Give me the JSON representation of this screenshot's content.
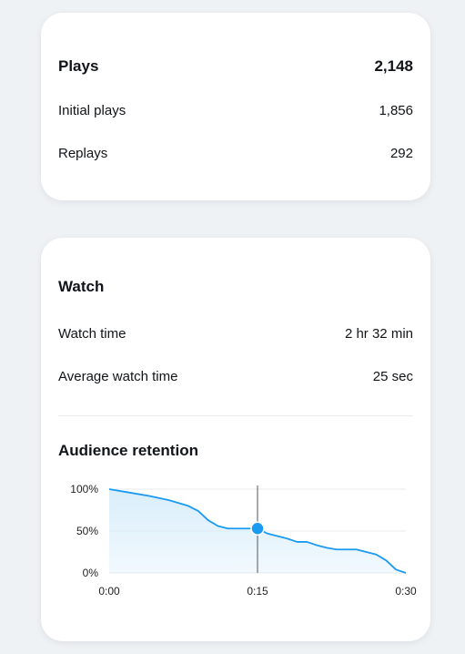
{
  "plays": {
    "title": "Plays",
    "total": "2,148",
    "rows": [
      {
        "label": "Initial plays",
        "value": "1,856"
      },
      {
        "label": "Replays",
        "value": "292"
      }
    ]
  },
  "watch": {
    "title": "Watch",
    "rows": [
      {
        "label": "Watch time",
        "value": "2 hr 32 min"
      },
      {
        "label": "Average watch time",
        "value": "25 sec"
      }
    ]
  },
  "retention": {
    "title": "Audience retention"
  },
  "colors": {
    "line": "#1a9af0",
    "fill": "#d9eefb",
    "marker": "#1a9af0"
  },
  "chart_data": {
    "type": "area",
    "title": "Audience retention",
    "x_unit": "seconds",
    "y_unit": "percent",
    "xlim": [
      0,
      30
    ],
    "ylim": [
      0,
      100
    ],
    "y_ticks": [
      "100%",
      "50%",
      "0%"
    ],
    "x_ticks": [
      "0:00",
      "0:15",
      "0:30"
    ],
    "grid": true,
    "highlight": {
      "x": 15,
      "y": 53
    },
    "series": [
      {
        "x": [
          0,
          2,
          4,
          6,
          8,
          9,
          10,
          11,
          12,
          13,
          14,
          15,
          16,
          18,
          19,
          20,
          21,
          22,
          23,
          24,
          25,
          26,
          27,
          28,
          29,
          30
        ],
        "y": [
          100,
          96,
          92,
          87,
          80,
          74,
          63,
          56,
          53,
          53,
          53,
          53,
          47,
          41,
          37,
          37,
          33,
          30,
          28,
          28,
          28,
          25,
          22,
          15,
          4,
          0
        ]
      }
    ]
  }
}
